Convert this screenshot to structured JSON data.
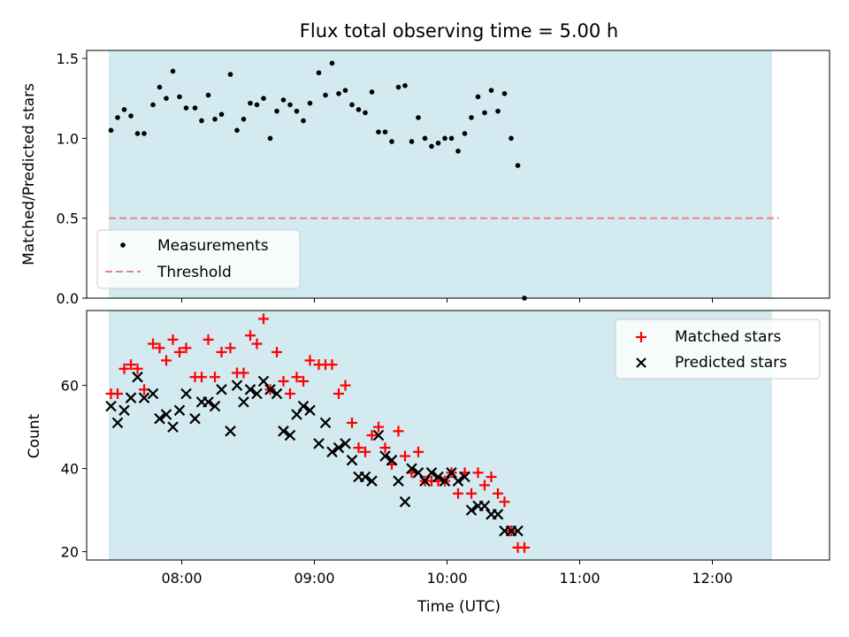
{
  "title": "Flux total observing time = 5.00 h",
  "chart_data": [
    {
      "type": "scatter",
      "panel": "top",
      "ylabel": "Matched/Predicted stars",
      "ylim": [
        0,
        1.55
      ],
      "yticks": [
        0.0,
        0.5,
        1.0,
        1.5
      ],
      "ytick_labels": [
        "0.0",
        "0.5",
        "1.0",
        "1.5"
      ],
      "xlim": [
        "07:17",
        "12:53"
      ],
      "shaded_range": [
        "07:27",
        "12:27"
      ],
      "shade_color": "#d3eaf0",
      "legend": {
        "placement": "lower-left",
        "entries": [
          "Measurements",
          "Threshold"
        ]
      },
      "threshold": {
        "name": "Threshold",
        "value": 0.5,
        "x_range": [
          "07:27",
          "12:30"
        ],
        "color": "#f08080",
        "style": "dashed"
      },
      "series": [
        {
          "name": "Measurements",
          "color": "#000000",
          "points": [
            [
              "07:28",
              1.05
            ],
            [
              "07:31",
              1.13
            ],
            [
              "07:34",
              1.18
            ],
            [
              "07:37",
              1.14
            ],
            [
              "07:40",
              1.03
            ],
            [
              "07:43",
              1.03
            ],
            [
              "07:47",
              1.21
            ],
            [
              "07:50",
              1.32
            ],
            [
              "07:53",
              1.25
            ],
            [
              "07:56",
              1.42
            ],
            [
              "07:59",
              1.26
            ],
            [
              "08:02",
              1.19
            ],
            [
              "08:06",
              1.19
            ],
            [
              "08:09",
              1.11
            ],
            [
              "08:12",
              1.27
            ],
            [
              "08:15",
              1.12
            ],
            [
              "08:18",
              1.15
            ],
            [
              "08:22",
              1.4
            ],
            [
              "08:25",
              1.05
            ],
            [
              "08:28",
              1.12
            ],
            [
              "08:31",
              1.22
            ],
            [
              "08:34",
              1.21
            ],
            [
              "08:37",
              1.25
            ],
            [
              "08:40",
              1.0
            ],
            [
              "08:43",
              1.17
            ],
            [
              "08:46",
              1.24
            ],
            [
              "08:49",
              1.21
            ],
            [
              "08:52",
              1.17
            ],
            [
              "08:55",
              1.11
            ],
            [
              "08:58",
              1.22
            ],
            [
              "09:02",
              1.41
            ],
            [
              "09:05",
              1.27
            ],
            [
              "09:08",
              1.47
            ],
            [
              "09:11",
              1.28
            ],
            [
              "09:14",
              1.3
            ],
            [
              "09:17",
              1.21
            ],
            [
              "09:20",
              1.18
            ],
            [
              "09:23",
              1.16
            ],
            [
              "09:26",
              1.29
            ],
            [
              "09:29",
              1.04
            ],
            [
              "09:32",
              1.04
            ],
            [
              "09:35",
              0.98
            ],
            [
              "09:38",
              1.32
            ],
            [
              "09:41",
              1.33
            ],
            [
              "09:44",
              0.98
            ],
            [
              "09:47",
              1.13
            ],
            [
              "09:50",
              1.0
            ],
            [
              "09:53",
              0.95
            ],
            [
              "09:56",
              0.97
            ],
            [
              "09:59",
              1.0
            ],
            [
              "10:02",
              1.0
            ],
            [
              "10:05",
              0.92
            ],
            [
              "10:08",
              1.03
            ],
            [
              "10:11",
              1.13
            ],
            [
              "10:14",
              1.26
            ],
            [
              "10:17",
              1.16
            ],
            [
              "10:20",
              1.3
            ],
            [
              "10:23",
              1.17
            ],
            [
              "10:26",
              1.28
            ],
            [
              "10:29",
              1.0
            ],
            [
              "10:32",
              0.83
            ],
            [
              "10:35",
              0.0
            ]
          ]
        }
      ]
    },
    {
      "type": "scatter",
      "panel": "bottom",
      "xlabel": "Time (UTC)",
      "ylabel": "Count",
      "ylim": [
        18,
        78
      ],
      "yticks": [
        20,
        40,
        60
      ],
      "ytick_labels": [
        "20",
        "40",
        "60"
      ],
      "xlim": [
        "07:17",
        "12:53"
      ],
      "xticks": [
        "08:00",
        "09:00",
        "10:00",
        "11:00",
        "12:00"
      ],
      "xtick_labels": [
        "08:00",
        "09:00",
        "10:00",
        "11:00",
        "12:00"
      ],
      "shaded_range": [
        "07:27",
        "12:27"
      ],
      "legend": {
        "placement": "upper-right",
        "entries": [
          "Matched stars",
          "Predicted stars"
        ]
      },
      "series": [
        {
          "name": "Matched stars",
          "marker": "plus",
          "color": "#ff0000",
          "points": [
            [
              "07:28",
              58
            ],
            [
              "07:31",
              58
            ],
            [
              "07:34",
              64
            ],
            [
              "07:37",
              65
            ],
            [
              "07:40",
              64
            ],
            [
              "07:43",
              59
            ],
            [
              "07:47",
              70
            ],
            [
              "07:50",
              69
            ],
            [
              "07:53",
              66
            ],
            [
              "07:56",
              71
            ],
            [
              "07:59",
              68
            ],
            [
              "08:02",
              69
            ],
            [
              "08:06",
              62
            ],
            [
              "08:09",
              62
            ],
            [
              "08:12",
              71
            ],
            [
              "08:15",
              62
            ],
            [
              "08:18",
              68
            ],
            [
              "08:22",
              69
            ],
            [
              "08:25",
              63
            ],
            [
              "08:28",
              63
            ],
            [
              "08:31",
              72
            ],
            [
              "08:34",
              70
            ],
            [
              "08:37",
              76
            ],
            [
              "08:40",
              59
            ],
            [
              "08:43",
              68
            ],
            [
              "08:46",
              61
            ],
            [
              "08:49",
              58
            ],
            [
              "08:52",
              62
            ],
            [
              "08:55",
              61
            ],
            [
              "08:58",
              66
            ],
            [
              "09:02",
              65
            ],
            [
              "09:05",
              65
            ],
            [
              "09:08",
              65
            ],
            [
              "09:11",
              58
            ],
            [
              "09:14",
              60
            ],
            [
              "09:17",
              51
            ],
            [
              "09:20",
              45
            ],
            [
              "09:23",
              44
            ],
            [
              "09:26",
              48
            ],
            [
              "09:29",
              50
            ],
            [
              "09:32",
              45
            ],
            [
              "09:35",
              41
            ],
            [
              "09:38",
              49
            ],
            [
              "09:41",
              43
            ],
            [
              "09:44",
              39
            ],
            [
              "09:47",
              44
            ],
            [
              "09:50",
              37
            ],
            [
              "09:53",
              37
            ],
            [
              "09:56",
              37
            ],
            [
              "09:59",
              37
            ],
            [
              "10:02",
              39
            ],
            [
              "10:05",
              34
            ],
            [
              "10:08",
              39
            ],
            [
              "10:11",
              34
            ],
            [
              "10:14",
              39
            ],
            [
              "10:17",
              36
            ],
            [
              "10:20",
              38
            ],
            [
              "10:23",
              34
            ],
            [
              "10:26",
              32
            ],
            [
              "10:29",
              25
            ],
            [
              "10:32",
              21
            ],
            [
              "10:35",
              21
            ]
          ]
        },
        {
          "name": "Predicted stars",
          "marker": "x",
          "color": "#000000",
          "points": [
            [
              "07:28",
              55
            ],
            [
              "07:31",
              51
            ],
            [
              "07:34",
              54
            ],
            [
              "07:37",
              57
            ],
            [
              "07:40",
              62
            ],
            [
              "07:43",
              57
            ],
            [
              "07:47",
              58
            ],
            [
              "07:50",
              52
            ],
            [
              "07:53",
              53
            ],
            [
              "07:56",
              50
            ],
            [
              "07:59",
              54
            ],
            [
              "08:02",
              58
            ],
            [
              "08:06",
              52
            ],
            [
              "08:09",
              56
            ],
            [
              "08:12",
              56
            ],
            [
              "08:15",
              55
            ],
            [
              "08:18",
              59
            ],
            [
              "08:22",
              49
            ],
            [
              "08:25",
              60
            ],
            [
              "08:28",
              56
            ],
            [
              "08:31",
              59
            ],
            [
              "08:34",
              58
            ],
            [
              "08:37",
              61
            ],
            [
              "08:40",
              59
            ],
            [
              "08:43",
              58
            ],
            [
              "08:46",
              49
            ],
            [
              "08:49",
              48
            ],
            [
              "08:52",
              53
            ],
            [
              "08:55",
              55
            ],
            [
              "08:58",
              54
            ],
            [
              "09:02",
              46
            ],
            [
              "09:05",
              51
            ],
            [
              "09:08",
              44
            ],
            [
              "09:11",
              45
            ],
            [
              "09:14",
              46
            ],
            [
              "09:17",
              42
            ],
            [
              "09:20",
              38
            ],
            [
              "09:23",
              38
            ],
            [
              "09:26",
              37
            ],
            [
              "09:29",
              48
            ],
            [
              "09:32",
              43
            ],
            [
              "09:35",
              42
            ],
            [
              "09:38",
              37
            ],
            [
              "09:41",
              32
            ],
            [
              "09:44",
              40
            ],
            [
              "09:47",
              39
            ],
            [
              "09:50",
              37
            ],
            [
              "09:53",
              39
            ],
            [
              "09:56",
              38
            ],
            [
              "09:59",
              37
            ],
            [
              "10:02",
              39
            ],
            [
              "10:05",
              37
            ],
            [
              "10:08",
              38
            ],
            [
              "10:11",
              30
            ],
            [
              "10:14",
              31
            ],
            [
              "10:17",
              31
            ],
            [
              "10:20",
              29
            ],
            [
              "10:23",
              29
            ],
            [
              "10:26",
              25
            ],
            [
              "10:29",
              25
            ],
            [
              "10:32",
              25
            ]
          ]
        }
      ]
    }
  ]
}
